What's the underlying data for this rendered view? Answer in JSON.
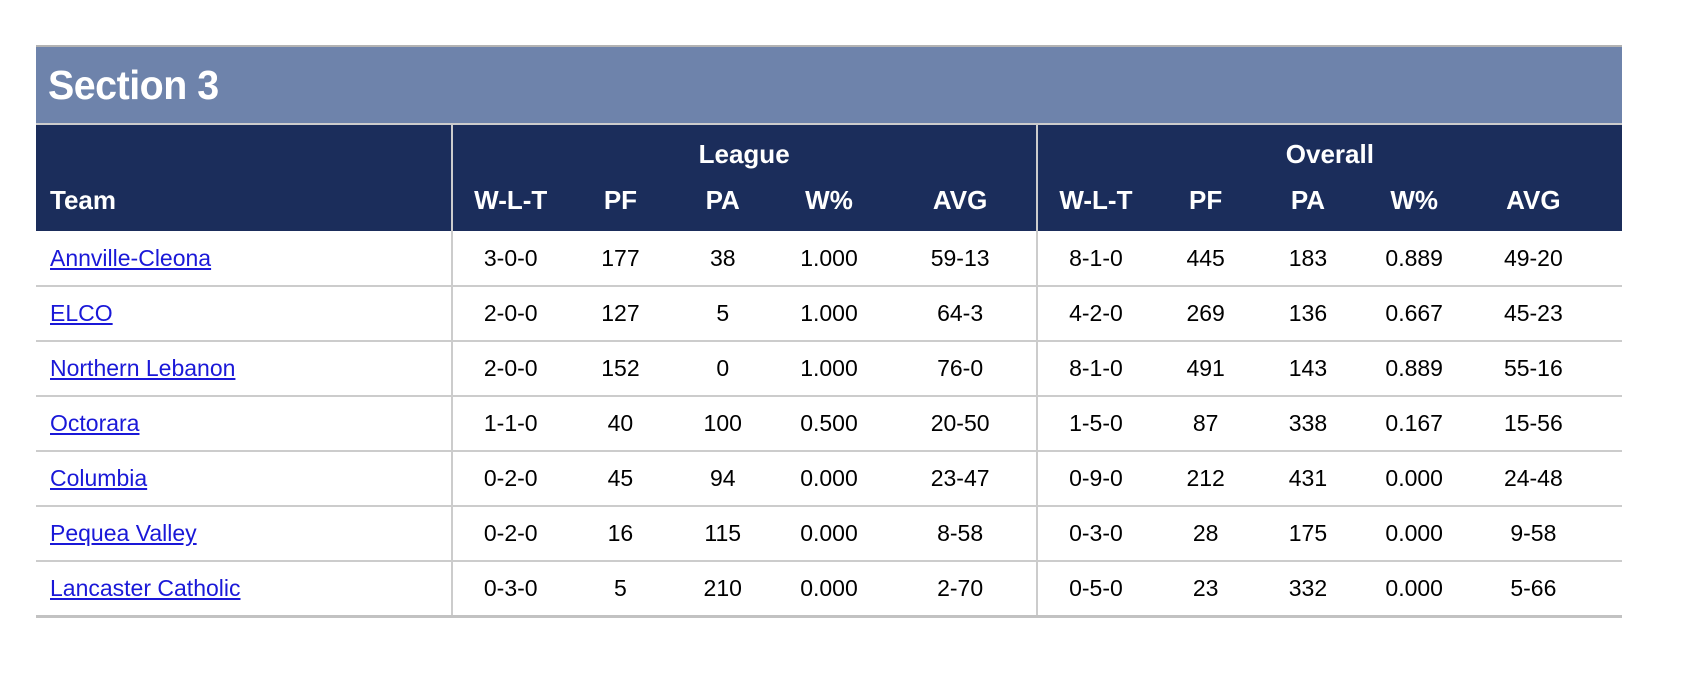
{
  "section_title": "Section 3",
  "colors": {
    "section_header_bg": "#6E83AB",
    "table_header_bg": "#1B2D5B",
    "header_text": "#FFFFFF",
    "link": "#1A18D8",
    "row_border": "#CCCCCC"
  },
  "table": {
    "team_header": "Team",
    "group_headers": [
      "League",
      "Overall"
    ],
    "stat_columns": [
      "W-L-T",
      "PF",
      "PA",
      "W%",
      "AVG"
    ],
    "rows": [
      {
        "team": "Annville-Cleona",
        "league": [
          "3-0-0",
          "177",
          "38",
          "1.000",
          "59-13"
        ],
        "overall": [
          "8-1-0",
          "445",
          "183",
          "0.889",
          "49-20"
        ]
      },
      {
        "team": "ELCO",
        "league": [
          "2-0-0",
          "127",
          "5",
          "1.000",
          "64-3"
        ],
        "overall": [
          "4-2-0",
          "269",
          "136",
          "0.667",
          "45-23"
        ]
      },
      {
        "team": "Northern Lebanon",
        "league": [
          "2-0-0",
          "152",
          "0",
          "1.000",
          "76-0"
        ],
        "overall": [
          "8-1-0",
          "491",
          "143",
          "0.889",
          "55-16"
        ]
      },
      {
        "team": "Octorara",
        "league": [
          "1-1-0",
          "40",
          "100",
          "0.500",
          "20-50"
        ],
        "overall": [
          "1-5-0",
          "87",
          "338",
          "0.167",
          "15-56"
        ]
      },
      {
        "team": "Columbia",
        "league": [
          "0-2-0",
          "45",
          "94",
          "0.000",
          "23-47"
        ],
        "overall": [
          "0-9-0",
          "212",
          "431",
          "0.000",
          "24-48"
        ]
      },
      {
        "team": "Pequea Valley",
        "league": [
          "0-2-0",
          "16",
          "115",
          "0.000",
          "8-58"
        ],
        "overall": [
          "0-3-0",
          "28",
          "175",
          "0.000",
          "9-58"
        ]
      },
      {
        "team": "Lancaster Catholic",
        "league": [
          "0-3-0",
          "5",
          "210",
          "0.000",
          "2-70"
        ],
        "overall": [
          "0-5-0",
          "23",
          "332",
          "0.000",
          "5-66"
        ]
      }
    ]
  }
}
